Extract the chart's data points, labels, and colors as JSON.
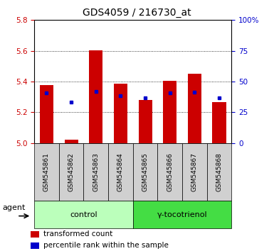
{
  "title": "GDS4059 / 216730_at",
  "samples": [
    "GSM545861",
    "GSM545862",
    "GSM545863",
    "GSM545864",
    "GSM545865",
    "GSM545866",
    "GSM545867",
    "GSM545868"
  ],
  "transformed_counts": [
    5.375,
    5.02,
    5.605,
    5.385,
    5.28,
    5.405,
    5.45,
    5.265
  ],
  "percentile_ranks": [
    5.325,
    5.265,
    5.335,
    5.31,
    5.295,
    5.325,
    5.33,
    5.295
  ],
  "bar_bottom": 5.0,
  "ylim": [
    5.0,
    5.8
  ],
  "yticks_left": [
    5.0,
    5.2,
    5.4,
    5.6,
    5.8
  ],
  "yticks_right": [
    0,
    25,
    50,
    75,
    100
  ],
  "y2lim": [
    0,
    100
  ],
  "bar_color": "#cc0000",
  "dot_color": "#0000cc",
  "groups": [
    {
      "label": "control",
      "start": 0,
      "end": 4,
      "color": "#bbffbb"
    },
    {
      "label": "γ-tocotrienol",
      "start": 4,
      "end": 8,
      "color": "#44dd44"
    }
  ],
  "agent_label": "agent",
  "legend": [
    {
      "color": "#cc0000",
      "label": "transformed count"
    },
    {
      "color": "#0000cc",
      "label": "percentile rank within the sample"
    }
  ],
  "bar_width": 0.55,
  "tick_label_color_left": "#cc0000",
  "tick_label_color_right": "#0000cc",
  "title_fontsize": 10,
  "tick_fontsize": 7.5,
  "xlabel_fontsize": 6.5,
  "legend_fontsize": 7.5,
  "group_fontsize": 8,
  "agent_fontsize": 8
}
